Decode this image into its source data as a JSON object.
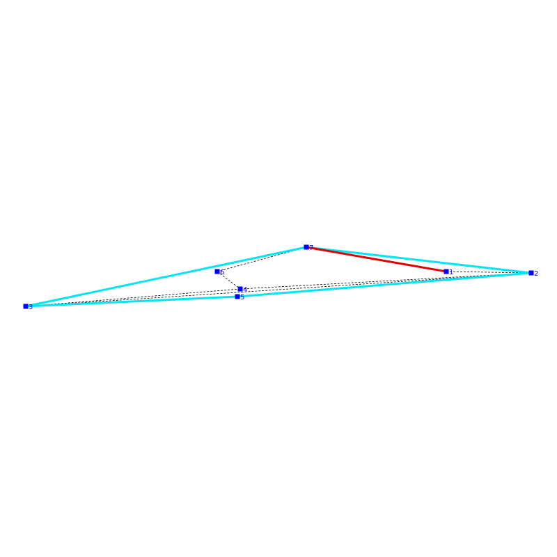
{
  "colors": {
    "hull_edge": "#00e5f0",
    "highlight_edge": "#e00000",
    "dashed_edge": "#000000",
    "vertex": "#0000ff"
  },
  "vertices": [
    {
      "id": "1",
      "label": "1"
    },
    {
      "id": "2",
      "label": "2"
    },
    {
      "id": "3",
      "label": "3"
    },
    {
      "id": "4",
      "label": "4"
    },
    {
      "id": "5",
      "label": "5"
    },
    {
      "id": "6",
      "label": "6"
    },
    {
      "id": "7",
      "label": "7"
    }
  ],
  "edges": {
    "hull": [
      [
        "7",
        "2"
      ],
      [
        "7",
        "3"
      ],
      [
        "3",
        "5"
      ],
      [
        "5",
        "2"
      ]
    ],
    "highlight": [
      [
        "7",
        "1"
      ]
    ],
    "dashed": [
      [
        "1",
        "2"
      ],
      [
        "7",
        "6"
      ],
      [
        "6",
        "4"
      ],
      [
        "4",
        "3"
      ],
      [
        "4",
        "2"
      ],
      [
        "3",
        "2"
      ],
      [
        "3",
        "5"
      ]
    ]
  }
}
